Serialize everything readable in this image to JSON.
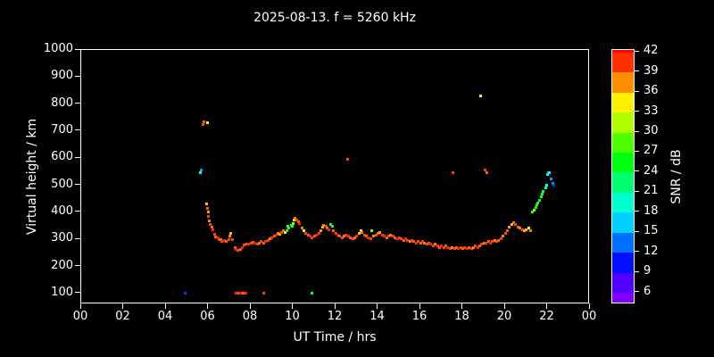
{
  "title": "2025-08-13. f = 5260 kHz",
  "axes": {
    "x_label": "UT Time / hrs",
    "y_label": "Virtual height / km",
    "cbar_label": "SNR / dB",
    "x_ticks": [
      "00",
      "02",
      "04",
      "06",
      "08",
      "10",
      "12",
      "14",
      "16",
      "18",
      "20",
      "22",
      "00"
    ],
    "y_ticks": [
      100,
      200,
      300,
      400,
      500,
      600,
      700,
      800,
      900,
      1000
    ],
    "cbar_ticks": [
      6,
      9,
      12,
      15,
      18,
      21,
      24,
      27,
      30,
      33,
      36,
      39,
      42
    ]
  },
  "colors": {
    "background": "#000000",
    "text": "#ffffff",
    "axis": "#ffffff"
  },
  "chart_data": {
    "type": "scatter",
    "title": "2025-08-13. f = 5260 kHz",
    "xlabel": "UT Time / hrs",
    "ylabel": "Virtual height / km",
    "colorbar_label": "SNR / dB",
    "xlim": [
      0,
      24
    ],
    "ylim": [
      60,
      1000
    ],
    "snr_range": [
      6,
      42
    ],
    "legend": "none",
    "grid": false,
    "points_format": "[ut_hours, virtual_height_km, snr_db]",
    "points": [
      [
        4.9,
        100,
        12
      ],
      [
        5.6,
        545,
        18
      ],
      [
        5.65,
        555,
        15
      ],
      [
        5.75,
        725,
        40
      ],
      [
        5.8,
        735,
        39
      ],
      [
        5.95,
        730,
        33
      ],
      [
        5.9,
        430,
        36
      ],
      [
        5.95,
        415,
        39
      ],
      [
        6.0,
        400,
        37
      ],
      [
        6.0,
        385,
        40
      ],
      [
        6.05,
        370,
        38
      ],
      [
        6.1,
        355,
        40
      ],
      [
        6.15,
        345,
        39
      ],
      [
        6.2,
        335,
        41
      ],
      [
        6.3,
        320,
        40
      ],
      [
        6.35,
        310,
        39
      ],
      [
        6.45,
        305,
        41
      ],
      [
        6.5,
        300,
        40
      ],
      [
        6.6,
        298,
        38
      ],
      [
        6.65,
        293,
        40
      ],
      [
        6.75,
        296,
        41
      ],
      [
        6.85,
        292,
        39
      ],
      [
        6.95,
        300,
        40
      ],
      [
        7.0,
        312,
        38
      ],
      [
        7.05,
        322,
        36
      ],
      [
        7.15,
        298,
        40
      ],
      [
        7.25,
        268,
        39
      ],
      [
        7.3,
        262,
        41
      ],
      [
        7.4,
        258,
        40
      ],
      [
        7.5,
        263,
        39
      ],
      [
        7.6,
        270,
        41
      ],
      [
        7.7,
        278,
        40
      ],
      [
        7.8,
        284,
        39
      ],
      [
        7.9,
        281,
        41
      ],
      [
        8.0,
        286,
        40
      ],
      [
        7.3,
        100,
        40
      ],
      [
        7.35,
        100,
        41
      ],
      [
        7.45,
        100,
        39
      ],
      [
        7.5,
        100,
        42
      ],
      [
        7.6,
        100,
        40
      ],
      [
        7.65,
        100,
        39
      ],
      [
        7.75,
        100,
        41
      ],
      [
        8.6,
        100,
        40
      ],
      [
        8.1,
        290,
        39
      ],
      [
        8.2,
        287,
        41
      ],
      [
        8.3,
        282,
        40
      ],
      [
        8.4,
        286,
        38
      ],
      [
        8.5,
        291,
        40
      ],
      [
        8.6,
        287,
        39
      ],
      [
        8.7,
        292,
        41
      ],
      [
        8.8,
        296,
        40
      ],
      [
        8.9,
        301,
        38
      ],
      [
        9.0,
        306,
        40
      ],
      [
        9.1,
        311,
        39
      ],
      [
        9.2,
        316,
        41
      ],
      [
        9.3,
        322,
        38
      ],
      [
        9.35,
        318,
        36
      ],
      [
        9.45,
        326,
        40
      ],
      [
        9.55,
        331,
        39
      ],
      [
        9.6,
        327,
        33
      ],
      [
        9.7,
        333,
        27
      ],
      [
        9.75,
        347,
        21
      ],
      [
        9.8,
        341,
        24
      ],
      [
        9.9,
        352,
        24
      ],
      [
        9.95,
        348,
        27
      ],
      [
        10.0,
        357,
        30
      ],
      [
        10.05,
        371,
        33
      ],
      [
        10.1,
        377,
        38
      ],
      [
        10.15,
        372,
        40
      ],
      [
        10.25,
        366,
        39
      ],
      [
        10.3,
        357,
        41
      ],
      [
        10.4,
        342,
        38
      ],
      [
        10.5,
        331,
        33
      ],
      [
        10.6,
        321,
        40
      ],
      [
        10.7,
        316,
        39
      ],
      [
        10.8,
        311,
        41
      ],
      [
        10.9,
        306,
        40
      ],
      [
        10.9,
        100,
        24
      ],
      [
        11.0,
        311,
        39
      ],
      [
        11.1,
        316,
        41
      ],
      [
        11.2,
        321,
        40
      ],
      [
        11.3,
        331,
        37
      ],
      [
        11.4,
        346,
        36
      ],
      [
        11.45,
        352,
        38
      ],
      [
        11.55,
        348,
        40
      ],
      [
        11.6,
        341,
        39
      ],
      [
        11.7,
        336,
        41
      ],
      [
        11.75,
        356,
        24
      ],
      [
        11.85,
        347,
        27
      ],
      [
        11.9,
        331,
        39
      ],
      [
        12.0,
        321,
        40
      ],
      [
        12.55,
        595,
        40
      ],
      [
        12.1,
        316,
        41
      ],
      [
        12.2,
        311,
        39
      ],
      [
        12.3,
        306,
        40
      ],
      [
        12.4,
        311,
        38
      ],
      [
        12.5,
        316,
        40
      ],
      [
        12.6,
        311,
        41
      ],
      [
        12.7,
        306,
        39
      ],
      [
        12.8,
        301,
        40
      ],
      [
        12.9,
        306,
        38
      ],
      [
        13.0,
        311,
        40
      ],
      [
        13.1,
        321,
        36
      ],
      [
        13.2,
        331,
        33
      ],
      [
        13.25,
        326,
        38
      ],
      [
        13.35,
        316,
        40
      ],
      [
        13.45,
        311,
        39
      ],
      [
        13.55,
        306,
        41
      ],
      [
        13.65,
        301,
        40
      ],
      [
        13.7,
        331,
        30
      ],
      [
        13.8,
        311,
        38
      ],
      [
        13.9,
        316,
        40
      ],
      [
        14.0,
        321,
        39
      ],
      [
        14.1,
        326,
        37
      ],
      [
        14.2,
        316,
        40
      ],
      [
        14.3,
        311,
        41
      ],
      [
        14.4,
        306,
        39
      ],
      [
        14.5,
        311,
        40
      ],
      [
        14.6,
        316,
        38
      ],
      [
        14.7,
        311,
        40
      ],
      [
        14.8,
        306,
        39
      ],
      [
        14.9,
        301,
        41
      ],
      [
        15.0,
        306,
        40
      ],
      [
        15.1,
        301,
        40
      ],
      [
        15.2,
        296,
        39
      ],
      [
        15.3,
        301,
        41
      ],
      [
        15.4,
        296,
        40
      ],
      [
        15.5,
        291,
        38
      ],
      [
        15.6,
        296,
        40
      ],
      [
        15.7,
        291,
        39
      ],
      [
        15.8,
        286,
        41
      ],
      [
        15.9,
        291,
        40
      ],
      [
        16.0,
        286,
        39
      ],
      [
        16.1,
        291,
        40
      ],
      [
        16.2,
        286,
        38
      ],
      [
        16.3,
        281,
        40
      ],
      [
        16.4,
        286,
        39
      ],
      [
        16.5,
        281,
        41
      ],
      [
        16.6,
        276,
        40
      ],
      [
        16.7,
        281,
        38
      ],
      [
        16.8,
        276,
        40
      ],
      [
        16.9,
        271,
        39
      ],
      [
        17.0,
        276,
        41
      ],
      [
        17.1,
        271,
        40
      ],
      [
        17.2,
        276,
        39
      ],
      [
        17.3,
        271,
        41
      ],
      [
        17.4,
        266,
        40
      ],
      [
        17.5,
        271,
        38
      ],
      [
        17.55,
        545,
        40
      ],
      [
        17.6,
        266,
        40
      ],
      [
        17.7,
        271,
        39
      ],
      [
        17.8,
        266,
        41
      ],
      [
        17.9,
        271,
        40
      ],
      [
        18.0,
        266,
        39
      ],
      [
        18.1,
        271,
        40
      ],
      [
        18.2,
        266,
        41
      ],
      [
        18.3,
        271,
        39
      ],
      [
        18.4,
        266,
        40
      ],
      [
        18.5,
        271,
        38
      ],
      [
        18.6,
        276,
        40
      ],
      [
        18.7,
        271,
        41
      ],
      [
        18.8,
        276,
        39
      ],
      [
        18.85,
        830,
        33
      ],
      [
        18.9,
        281,
        40
      ],
      [
        19.0,
        286,
        38
      ],
      [
        19.05,
        555,
        40
      ],
      [
        19.15,
        545,
        39
      ],
      [
        19.1,
        286,
        40
      ],
      [
        19.2,
        291,
        39
      ],
      [
        19.3,
        286,
        41
      ],
      [
        19.4,
        291,
        40
      ],
      [
        19.5,
        296,
        38
      ],
      [
        19.6,
        291,
        40
      ],
      [
        19.7,
        296,
        39
      ],
      [
        19.8,
        301,
        40
      ],
      [
        19.9,
        311,
        38
      ],
      [
        20.0,
        321,
        40
      ],
      [
        20.1,
        331,
        39
      ],
      [
        20.2,
        346,
        37
      ],
      [
        20.3,
        356,
        36
      ],
      [
        20.4,
        361,
        38
      ],
      [
        20.5,
        356,
        40
      ],
      [
        20.6,
        346,
        39
      ],
      [
        20.7,
        341,
        38
      ],
      [
        20.8,
        336,
        40
      ],
      [
        20.9,
        331,
        37
      ],
      [
        21.0,
        336,
        36
      ],
      [
        21.1,
        341,
        33
      ],
      [
        21.2,
        331,
        38
      ],
      [
        21.3,
        400,
        27
      ],
      [
        21.35,
        408,
        30
      ],
      [
        21.45,
        418,
        27
      ],
      [
        21.5,
        428,
        24
      ],
      [
        21.55,
        436,
        27
      ],
      [
        21.6,
        444,
        24
      ],
      [
        21.7,
        456,
        24
      ],
      [
        21.75,
        466,
        27
      ],
      [
        21.8,
        476,
        24
      ],
      [
        21.9,
        490,
        21
      ],
      [
        21.95,
        500,
        18
      ],
      [
        22.0,
        540,
        18
      ],
      [
        22.05,
        548,
        15
      ],
      [
        22.1,
        545,
        18
      ],
      [
        22.15,
        522,
        15
      ],
      [
        22.25,
        506,
        15
      ],
      [
        22.3,
        500,
        12
      ]
    ]
  }
}
